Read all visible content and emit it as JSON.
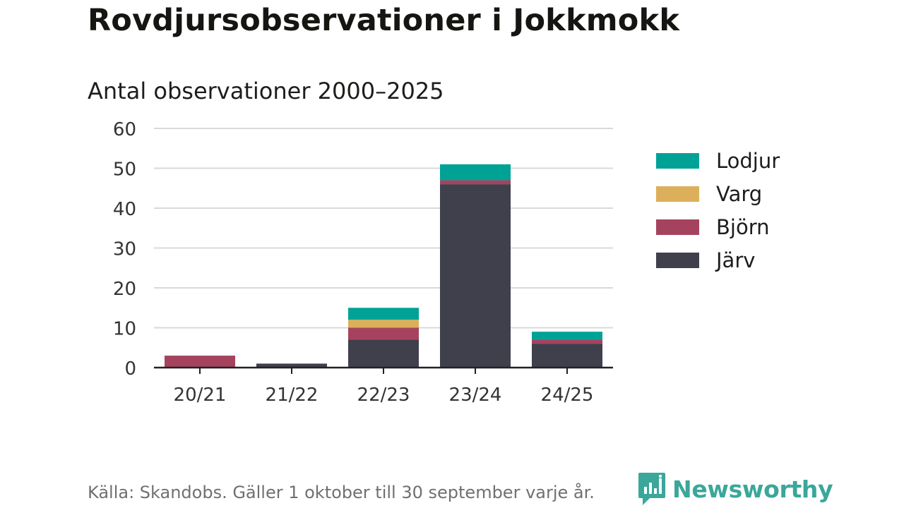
{
  "header": {
    "title": "Rovdjursobservationer i Jokkmokk",
    "subtitle": "Antal observationer 2000–2025"
  },
  "footer": {
    "source": "Källa: Skandobs. Gäller 1 oktober till 30 september varje år.",
    "brand": "Newsworthy"
  },
  "colors": {
    "Lodjur": "#00a296",
    "Varg": "#dcaf5a",
    "Björn": "#a5435f",
    "Järv": "#403f4c",
    "grid": "#d9d9d9",
    "axis": "#222222",
    "brand": "#3aa79a"
  },
  "chart_data": {
    "type": "bar",
    "stacked": true,
    "categories": [
      "20/21",
      "21/22",
      "22/23",
      "23/24",
      "24/25"
    ],
    "series": [
      {
        "name": "Järv",
        "values": [
          0,
          1,
          7,
          46,
          6
        ]
      },
      {
        "name": "Björn",
        "values": [
          3,
          0,
          3,
          1,
          1
        ]
      },
      {
        "name": "Varg",
        "values": [
          0,
          0,
          2,
          0,
          0
        ]
      },
      {
        "name": "Lodjur",
        "values": [
          0,
          0,
          3,
          4,
          2
        ]
      }
    ],
    "legend_order": [
      "Lodjur",
      "Varg",
      "Björn",
      "Järv"
    ],
    "ylim": [
      0,
      60
    ],
    "yticks": [
      0,
      10,
      20,
      30,
      40,
      50,
      60
    ],
    "grid": true,
    "legend_position": "right"
  }
}
